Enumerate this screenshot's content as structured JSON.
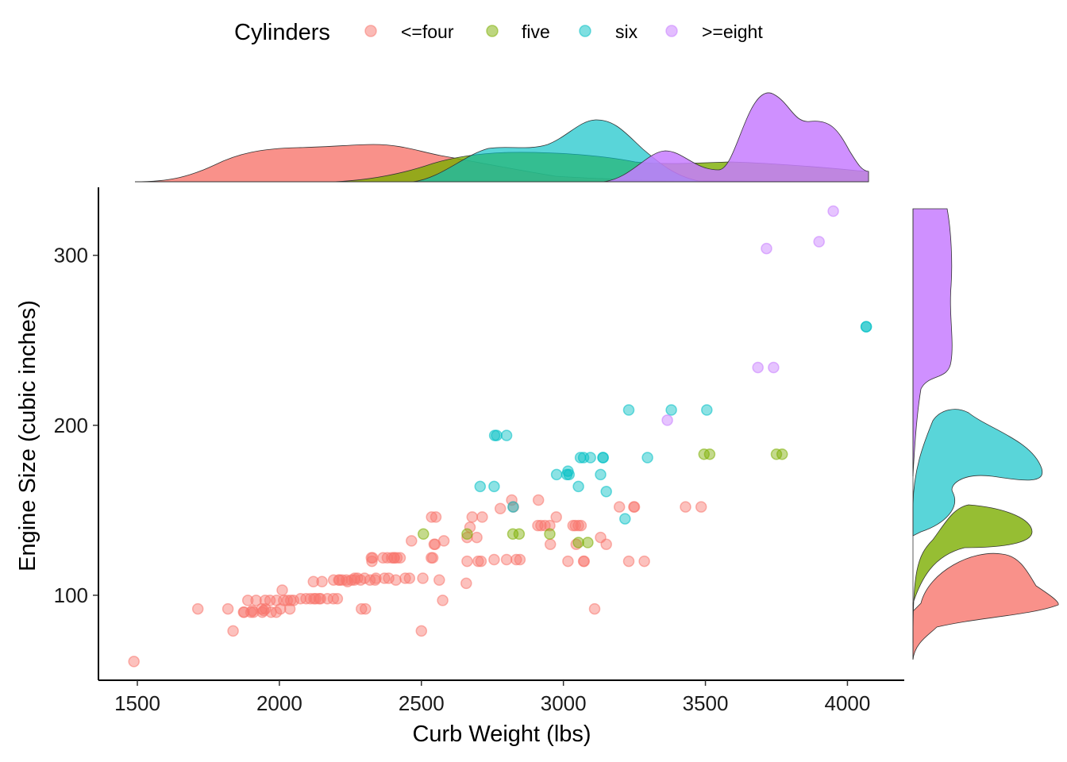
{
  "chart_data": {
    "type": "scatter",
    "xlabel": "Curb Weight (lbs)",
    "ylabel": "Engine Size (cubic inches)",
    "xlim": [
      1363,
      4200
    ],
    "ylim": [
      50,
      340
    ],
    "xticks": [
      1500,
      2000,
      2500,
      3000,
      3500,
      4000
    ],
    "yticks": [
      100,
      200,
      300
    ],
    "grid": false,
    "legend": {
      "title": "Cylinders",
      "position": "top",
      "entries": [
        {
          "label": "<=four",
          "color": "#F8766D"
        },
        {
          "label": "five",
          "color": "#7CAE00"
        },
        {
          "label": "six",
          "color": "#00BFC4"
        },
        {
          "label": ">=eight",
          "color": "#C77CFF"
        }
      ]
    },
    "marginal_densities": {
      "top": "Curb Weight by Cylinders",
      "right": "Engine Size by Cylinders",
      "type": "density"
    },
    "series": [
      {
        "name": "<=four",
        "color": "#F8766D",
        "points": [
          [
            1488,
            61
          ],
          [
            1713,
            92
          ],
          [
            1819,
            92
          ],
          [
            1837,
            79
          ],
          [
            1874,
            90
          ],
          [
            1876,
            90
          ],
          [
            1889,
            97
          ],
          [
            1900,
            90
          ],
          [
            1905,
            91
          ],
          [
            1909,
            90
          ],
          [
            1918,
            97
          ],
          [
            1938,
            92
          ],
          [
            1940,
            90
          ],
          [
            1945,
            91
          ],
          [
            1950,
            97
          ],
          [
            1951,
            92
          ],
          [
            1967,
            97
          ],
          [
            1971,
            90
          ],
          [
            1989,
            90
          ],
          [
            1990,
            97
          ],
          [
            2004,
            92
          ],
          [
            2010,
            103
          ],
          [
            2015,
            97
          ],
          [
            2028,
            97
          ],
          [
            2037,
            92
          ],
          [
            2040,
            97
          ],
          [
            2050,
            97
          ],
          [
            2075,
            98
          ],
          [
            2094,
            98
          ],
          [
            2109,
            98
          ],
          [
            2120,
            108
          ],
          [
            2122,
            98
          ],
          [
            2128,
            98
          ],
          [
            2140,
            98
          ],
          [
            2145,
            98
          ],
          [
            2150,
            108
          ],
          [
            2169,
            98
          ],
          [
            2190,
            98
          ],
          [
            2191,
            109
          ],
          [
            2204,
            98
          ],
          [
            2209,
            109
          ],
          [
            2212,
            109
          ],
          [
            2221,
            109
          ],
          [
            2236,
            109
          ],
          [
            2240,
            108
          ],
          [
            2254,
            109
          ],
          [
            2264,
            109
          ],
          [
            2265,
            110
          ],
          [
            2275,
            110
          ],
          [
            2286,
            109
          ],
          [
            2289,
            92
          ],
          [
            2300,
            110
          ],
          [
            2303,
            92
          ],
          [
            2319,
            109
          ],
          [
            2324,
            122
          ],
          [
            2326,
            120
          ],
          [
            2328,
            122
          ],
          [
            2337,
            109
          ],
          [
            2340,
            110
          ],
          [
            2365,
            122
          ],
          [
            2370,
            110
          ],
          [
            2380,
            122
          ],
          [
            2385,
            110
          ],
          [
            2395,
            122
          ],
          [
            2403,
            122
          ],
          [
            2405,
            122
          ],
          [
            2410,
            109
          ],
          [
            2414,
            122
          ],
          [
            2425,
            122
          ],
          [
            2443,
            110
          ],
          [
            2458,
            110
          ],
          [
            2465,
            132
          ],
          [
            2500,
            79
          ],
          [
            2505,
            110
          ],
          [
            2535,
            122
          ],
          [
            2536,
            146
          ],
          [
            2540,
            122
          ],
          [
            2545,
            130
          ],
          [
            2548,
            130
          ],
          [
            2551,
            146
          ],
          [
            2563,
            109
          ],
          [
            2579,
            132
          ],
          [
            2575,
            97
          ],
          [
            2658,
            107
          ],
          [
            2661,
            120
          ],
          [
            2661,
            134
          ],
          [
            2671,
            140
          ],
          [
            2679,
            146
          ],
          [
            2695,
            134
          ],
          [
            2700,
            120
          ],
          [
            2710,
            120
          ],
          [
            2714,
            146
          ],
          [
            2756,
            121
          ],
          [
            2778,
            151
          ],
          [
            2800,
            121
          ],
          [
            2818,
            156
          ],
          [
            2824,
            152
          ],
          [
            2834,
            121
          ],
          [
            2847,
            121
          ],
          [
            2910,
            141
          ],
          [
            2912,
            156
          ],
          [
            2921,
            141
          ],
          [
            2935,
            141
          ],
          [
            2952,
            141
          ],
          [
            2954,
            130
          ],
          [
            2975,
            146
          ],
          [
            3016,
            120
          ],
          [
            3034,
            141
          ],
          [
            3042,
            141
          ],
          [
            3045,
            130
          ],
          [
            3053,
            141
          ],
          [
            3062,
            141
          ],
          [
            3071,
            120
          ],
          [
            3073,
            120
          ],
          [
            3110,
            92
          ],
          [
            3131,
            134
          ],
          [
            3151,
            130
          ],
          [
            3197,
            152
          ],
          [
            3230,
            120
          ],
          [
            3248,
            152
          ],
          [
            3250,
            152
          ],
          [
            3285,
            120
          ],
          [
            3430,
            152
          ],
          [
            3485,
            152
          ]
        ]
      },
      {
        "name": "five",
        "color": "#7CAE00",
        "points": [
          [
            2507,
            136
          ],
          [
            2661,
            136
          ],
          [
            2822,
            136
          ],
          [
            2844,
            136
          ],
          [
            2952,
            136
          ],
          [
            3053,
            131
          ],
          [
            3086,
            131
          ],
          [
            3495,
            183
          ],
          [
            3515,
            183
          ],
          [
            3750,
            183
          ],
          [
            3770,
            183
          ]
        ]
      },
      {
        "name": "six",
        "color": "#00BFC4",
        "points": [
          [
            2707,
            164
          ],
          [
            2758,
            194
          ],
          [
            2765,
            194
          ],
          [
            2800,
            194
          ],
          [
            2823,
            152
          ],
          [
            2756,
            164
          ],
          [
            2976,
            171
          ],
          [
            3012,
            171
          ],
          [
            3016,
            173
          ],
          [
            3020,
            171
          ],
          [
            3053,
            164
          ],
          [
            3060,
            181
          ],
          [
            3071,
            181
          ],
          [
            3095,
            181
          ],
          [
            3131,
            171
          ],
          [
            3139,
            181
          ],
          [
            3140,
            181
          ],
          [
            3151,
            161
          ],
          [
            3217,
            145
          ],
          [
            3230,
            209
          ],
          [
            3296,
            181
          ],
          [
            3380,
            209
          ],
          [
            3505,
            209
          ],
          [
            4066,
            258
          ],
          [
            4066,
            258
          ]
        ]
      },
      {
        "name": ">=eight",
        "color": "#C77CFF",
        "points": [
          [
            3366,
            203
          ],
          [
            3685,
            234
          ],
          [
            3715,
            304
          ],
          [
            3740,
            234
          ],
          [
            3900,
            308
          ],
          [
            3950,
            326
          ]
        ]
      }
    ]
  }
}
